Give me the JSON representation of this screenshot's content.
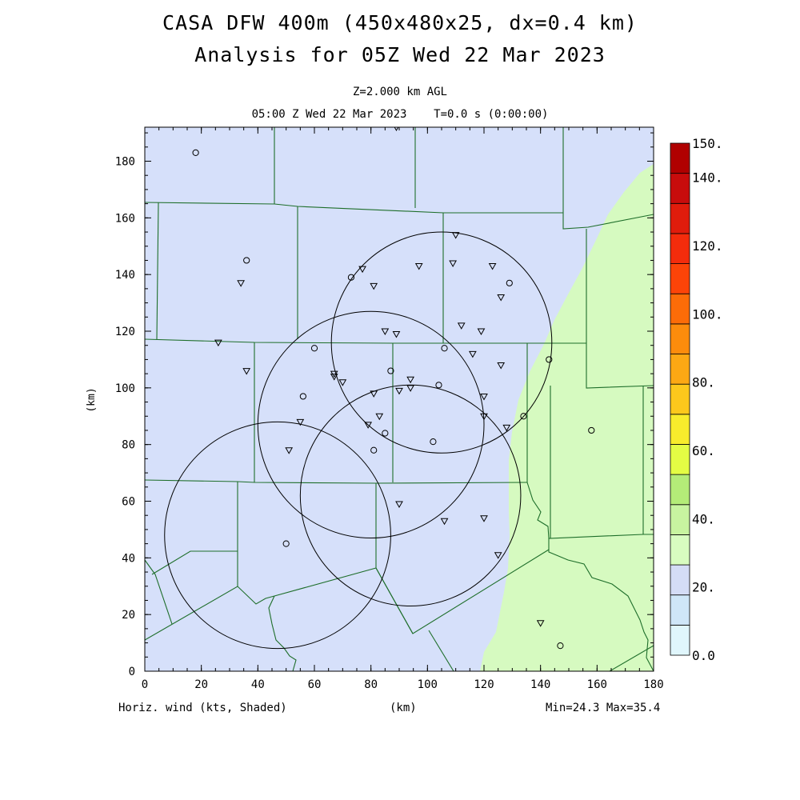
{
  "title": "CASA DFW 400m (450x480x25, dx=0.4 km)",
  "subtitle": "Analysis for 05Z Wed 22 Mar 2023",
  "level": "Z=2.000 km AGL",
  "time_line": "05:00 Z Wed 22 Mar 2023    T=0.0 s (0:00:00)",
  "xlabel": "(km)",
  "ylabel": "(km)",
  "field_label": "Horiz. wind (kts, Shaded)",
  "minmax": "Min=24.3 Max=35.4",
  "colors": {
    "low_fill": "#d6e0fa",
    "mid_fill": "#d6fac0",
    "county_line": "#1e6e2a"
  },
  "chart_data": {
    "type": "heatmap",
    "xlim": [
      0,
      180
    ],
    "ylim": [
      0,
      192
    ],
    "x_ticks": [
      "0",
      "20",
      "40",
      "60",
      "80",
      "100",
      "120",
      "140",
      "160",
      "180"
    ],
    "y_ticks": [
      "0",
      "20",
      "40",
      "60",
      "80",
      "100",
      "120",
      "140",
      "160",
      "180"
    ],
    "colorbar": {
      "labels": [
        "0.0",
        "20.",
        "40.",
        "60.",
        "80.",
        "100.",
        "120.",
        "140.",
        "150."
      ],
      "colors": [
        "#e0f6fc",
        "#cfe6f8",
        "#d4dcf6",
        "#d8fcc0",
        "#c8f4a0",
        "#b4ec78",
        "#e4fc44",
        "#f8ec2c",
        "#fcc81c",
        "#fca814",
        "#fc8c0c",
        "#fc6c08",
        "#fc4408",
        "#f42c0c",
        "#e01c0c",
        "#c80c0c",
        "#b00000"
      ]
    },
    "radars": [
      {
        "center": [
          105,
          116
        ],
        "radius": 39
      },
      {
        "center": [
          80,
          87
        ],
        "radius": 40
      },
      {
        "center": [
          94,
          62
        ],
        "radius": 39
      },
      {
        "center": [
          47,
          48
        ],
        "radius": 40
      }
    ],
    "stations_circle": [
      [
        18,
        183
      ],
      [
        36,
        145
      ],
      [
        73,
        139
      ],
      [
        129,
        137
      ],
      [
        60,
        114
      ],
      [
        106,
        114
      ],
      [
        87,
        106
      ],
      [
        143,
        110
      ],
      [
        56,
        97
      ],
      [
        104,
        101
      ],
      [
        134,
        90
      ],
      [
        158,
        85
      ],
      [
        85,
        84
      ],
      [
        102,
        81
      ],
      [
        81,
        78
      ],
      [
        50,
        45
      ],
      [
        147,
        9
      ]
    ],
    "stations_tri": [
      [
        89,
        192
      ],
      [
        110,
        154
      ],
      [
        34,
        137
      ],
      [
        77,
        142
      ],
      [
        81,
        136
      ],
      [
        97,
        143
      ],
      [
        109,
        144
      ],
      [
        123,
        143
      ],
      [
        126,
        132
      ],
      [
        112,
        122
      ],
      [
        119,
        120
      ],
      [
        85,
        120
      ],
      [
        89,
        119
      ],
      [
        26,
        116
      ],
      [
        116,
        112
      ],
      [
        126,
        108
      ],
      [
        36,
        106
      ],
      [
        67,
        105
      ],
      [
        67,
        104
      ],
      [
        70,
        102
      ],
      [
        94,
        103
      ],
      [
        94,
        100
      ],
      [
        90,
        99
      ],
      [
        81,
        98
      ],
      [
        120,
        97
      ],
      [
        55,
        88
      ],
      [
        79,
        87
      ],
      [
        83,
        90
      ],
      [
        120,
        90
      ],
      [
        128,
        86
      ],
      [
        51,
        78
      ],
      [
        90,
        59
      ],
      [
        120,
        54
      ],
      [
        106,
        53
      ],
      [
        125,
        41
      ],
      [
        140,
        17
      ]
    ]
  }
}
